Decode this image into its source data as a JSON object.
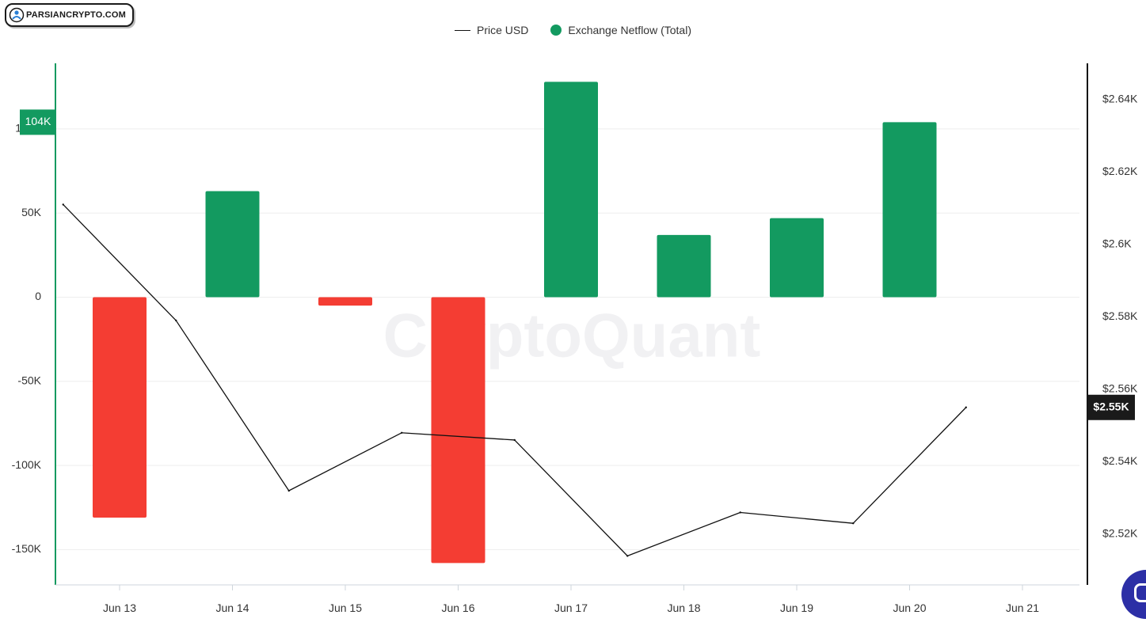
{
  "brand": {
    "logo_text": "PARSIANCRYPTO.COM",
    "watermark": "CryptoQuant"
  },
  "colors": {
    "positive": "#139a60",
    "negative": "#f43d33",
    "price_line": "#111111",
    "left_axis": "#139a60",
    "right_axis": "#111111",
    "grid": "#eeeeee",
    "watermark": "#f1f1f3"
  },
  "legend": [
    {
      "label": "Price USD",
      "swatch": "line"
    },
    {
      "label": "Exchange Netflow (Total)",
      "swatch": "dot"
    }
  ],
  "chart_data": {
    "type": "bar",
    "categories": [
      "Jun 13",
      "Jun 14",
      "Jun 15",
      "Jun 16",
      "Jun 17",
      "Jun 18",
      "Jun 19",
      "Jun 20",
      "Jun 21"
    ],
    "series": [
      {
        "name": "Exchange Netflow (Total)",
        "type": "bar",
        "axis": "left",
        "values": [
          -131000,
          63000,
          -5000,
          -158000,
          128000,
          37000,
          47000,
          104000,
          null
        ]
      },
      {
        "name": "Price USD",
        "type": "line",
        "axis": "right",
        "x": [
          "Jun 12 12:00",
          "Jun 13",
          "Jun 14",
          "Jun 15",
          "Jun 16",
          "Jun 17",
          "Jun 18",
          "Jun 19",
          "Jun 20"
        ],
        "values": [
          2611,
          2579,
          2532,
          2548,
          2546,
          2514,
          2526,
          2523,
          2555
        ]
      }
    ],
    "left_axis": {
      "ticks": [
        -150000,
        -100000,
        -50000,
        0,
        50000,
        100000
      ],
      "tick_labels": [
        "-150K",
        "-100K",
        "-50K",
        "0",
        "50K",
        "100K"
      ],
      "range": [
        -171000,
        139000
      ]
    },
    "right_axis": {
      "ticks": [
        2520,
        2540,
        2560,
        2580,
        2600,
        2620,
        2640
      ],
      "tick_labels": [
        "$2.52K",
        "$2.54K",
        "$2.56K",
        "$2.58K",
        "$2.6K",
        "$2.62K",
        "$2.64K"
      ],
      "range": [
        2506,
        2650
      ]
    },
    "last_value_labels": {
      "left": "104K",
      "right": "$2.55K"
    },
    "grid": true,
    "legend_position": "top-center"
  }
}
